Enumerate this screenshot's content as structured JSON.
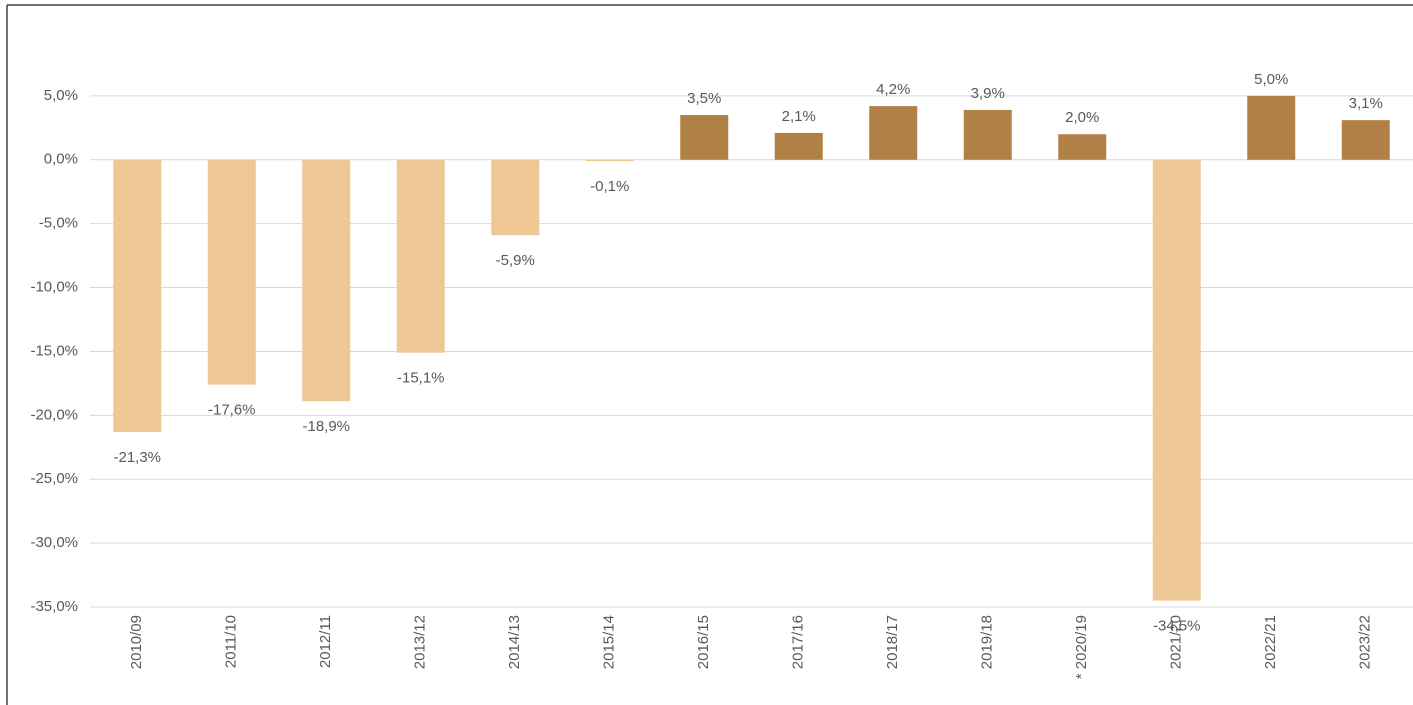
{
  "chart_data": {
    "type": "bar",
    "categories": [
      "2010/09",
      "2011/10",
      "2012/11",
      "2013/12",
      "2014/13",
      "2015/14",
      "2016/15",
      "2017/16",
      "2018/17",
      "2019/18",
      "* 2020/19",
      "2021/20",
      "2022/21",
      "2023/22"
    ],
    "values": [
      -21.3,
      -17.6,
      -18.9,
      -15.1,
      -5.9,
      -0.1,
      3.5,
      2.1,
      4.2,
      3.9,
      2.0,
      -34.5,
      5.0,
      3.1
    ],
    "value_labels": [
      "-21,3%",
      "-17,6%",
      "-18,9%",
      "-15,1%",
      "-5,9%",
      "-0,1%",
      "3,5%",
      "2,1%",
      "4,2%",
      "3,9%",
      "2,0%",
      "-34,5%",
      "5,0%",
      "3,1%"
    ],
    "color": "#b08047",
    "negative_color": "#edc895",
    "ylim": [
      -35,
      10
    ],
    "yticks": [
      {
        "value": -35,
        "label": "-35,0%"
      },
      {
        "value": -30,
        "label": "-30,0%"
      },
      {
        "value": -25,
        "label": "-25,0%"
      },
      {
        "value": -20,
        "label": "-20,0%"
      },
      {
        "value": -15,
        "label": "-15,0%"
      },
      {
        "value": -10,
        "label": "-10,0%"
      },
      {
        "value": -5,
        "label": "-5,0%"
      },
      {
        "value": 0,
        "label": "0,0%"
      },
      {
        "value": 5,
        "label": "5,0%"
      }
    ],
    "grid": true
  }
}
